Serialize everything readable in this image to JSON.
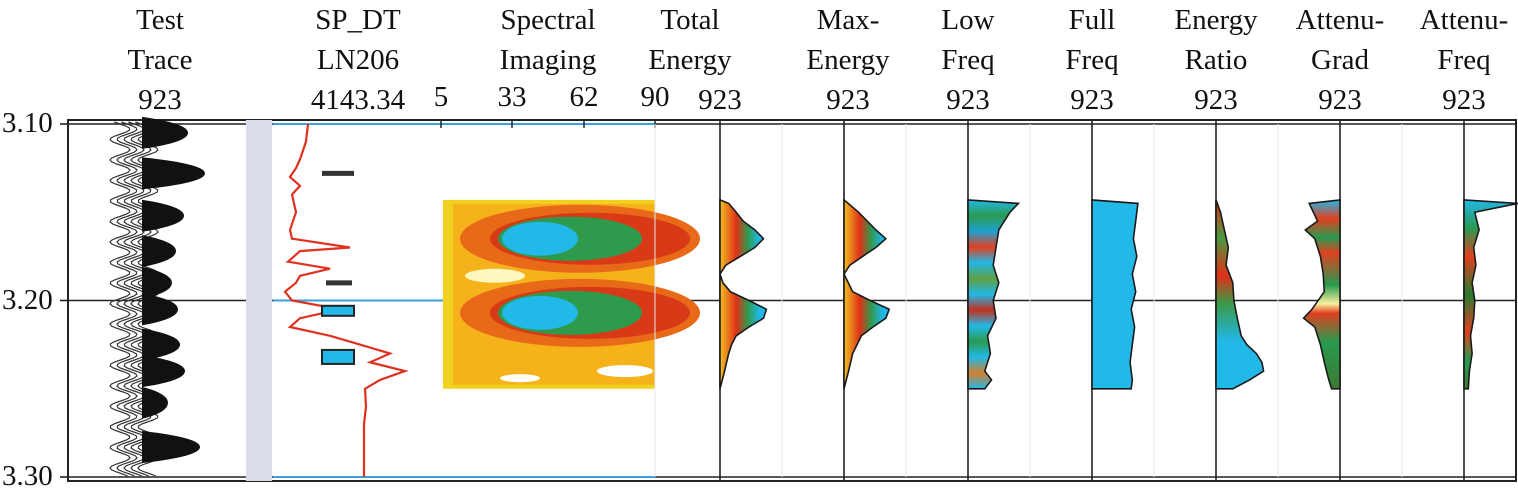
{
  "chart_data": {
    "type": "well-log",
    "depth_axis": {
      "ticks": [
        "3.10",
        "3.20",
        "3.30"
      ],
      "min": 3.1,
      "max": 3.3
    },
    "tracks": [
      {
        "id": "test-trace",
        "lines": [
          "Test",
          "Trace",
          "923"
        ]
      },
      {
        "id": "sp-dt",
        "lines": [
          "SP_DT",
          "LN206",
          "4143.34"
        ]
      },
      {
        "id": "spectral",
        "lines": [
          "Spectral",
          "Imaging",
          ""
        ],
        "freq_ticks": [
          "5",
          "33",
          "62",
          "90"
        ]
      },
      {
        "id": "total-energy",
        "lines": [
          "Total",
          "Energy",
          "923"
        ]
      },
      {
        "id": "max-energy",
        "lines": [
          "Max-",
          "Energy",
          "923"
        ]
      },
      {
        "id": "low-freq",
        "lines": [
          "Low",
          "Freq",
          "923"
        ]
      },
      {
        "id": "full-freq",
        "lines": [
          "Full",
          "Freq",
          "923"
        ]
      },
      {
        "id": "energy-ratio",
        "lines": [
          "Energy",
          "Ratio",
          "923"
        ]
      },
      {
        "id": "attenu-grad",
        "lines": [
          "Attenu-",
          "Grad",
          "923"
        ]
      },
      {
        "id": "attenu-freq",
        "lines": [
          "Attenu-",
          "Freq",
          "923"
        ]
      }
    ],
    "profiles": {
      "total_energy": [
        [
          3.143,
          0.0
        ],
        [
          3.145,
          0.15
        ],
        [
          3.15,
          0.28
        ],
        [
          3.155,
          0.4
        ],
        [
          3.16,
          0.6
        ],
        [
          3.165,
          0.75
        ],
        [
          3.17,
          0.6
        ],
        [
          3.175,
          0.35
        ],
        [
          3.18,
          0.1
        ],
        [
          3.185,
          0.0
        ],
        [
          3.19,
          0.05
        ],
        [
          3.195,
          0.18
        ],
        [
          3.2,
          0.5
        ],
        [
          3.205,
          0.8
        ],
        [
          3.21,
          0.75
        ],
        [
          3.215,
          0.5
        ],
        [
          3.22,
          0.28
        ],
        [
          3.225,
          0.2
        ],
        [
          3.23,
          0.15
        ],
        [
          3.24,
          0.08
        ],
        [
          3.25,
          0.0
        ]
      ],
      "max_energy": [
        [
          3.143,
          0.0
        ],
        [
          3.15,
          0.25
        ],
        [
          3.16,
          0.55
        ],
        [
          3.165,
          0.72
        ],
        [
          3.17,
          0.55
        ],
        [
          3.175,
          0.32
        ],
        [
          3.18,
          0.1
        ],
        [
          3.185,
          0.0
        ],
        [
          3.195,
          0.15
        ],
        [
          3.2,
          0.45
        ],
        [
          3.205,
          0.78
        ],
        [
          3.21,
          0.72
        ],
        [
          3.215,
          0.5
        ],
        [
          3.22,
          0.3
        ],
        [
          3.23,
          0.15
        ],
        [
          3.24,
          0.08
        ],
        [
          3.25,
          0.0
        ]
      ],
      "low_freq": [
        [
          3.143,
          0.0
        ],
        [
          3.145,
          0.9
        ],
        [
          3.15,
          0.75
        ],
        [
          3.16,
          0.55
        ],
        [
          3.17,
          0.5
        ],
        [
          3.18,
          0.45
        ],
        [
          3.19,
          0.55
        ],
        [
          3.2,
          0.45
        ],
        [
          3.21,
          0.5
        ],
        [
          3.22,
          0.35
        ],
        [
          3.23,
          0.4
        ],
        [
          3.24,
          0.3
        ],
        [
          3.245,
          0.42
        ],
        [
          3.25,
          0.3
        ],
        [
          3.25,
          0.0
        ]
      ],
      "full_freq": [
        [
          3.143,
          0.0
        ],
        [
          3.145,
          0.82
        ],
        [
          3.155,
          0.78
        ],
        [
          3.165,
          0.74
        ],
        [
          3.175,
          0.8
        ],
        [
          3.185,
          0.72
        ],
        [
          3.195,
          0.78
        ],
        [
          3.205,
          0.7
        ],
        [
          3.215,
          0.76
        ],
        [
          3.225,
          0.72
        ],
        [
          3.235,
          0.68
        ],
        [
          3.245,
          0.72
        ],
        [
          3.25,
          0.7
        ],
        [
          3.25,
          0.0
        ]
      ],
      "energy_ratio": [
        [
          3.143,
          0.0
        ],
        [
          3.15,
          0.08
        ],
        [
          3.16,
          0.15
        ],
        [
          3.17,
          0.22
        ],
        [
          3.18,
          0.18
        ],
        [
          3.19,
          0.3
        ],
        [
          3.2,
          0.32
        ],
        [
          3.21,
          0.38
        ],
        [
          3.22,
          0.45
        ],
        [
          3.225,
          0.55
        ],
        [
          3.23,
          0.72
        ],
        [
          3.235,
          0.82
        ],
        [
          3.24,
          0.85
        ],
        [
          3.245,
          0.6
        ],
        [
          3.25,
          0.3
        ],
        [
          3.25,
          0.0
        ]
      ],
      "attenu_grad": [
        [
          3.143,
          0.0
        ],
        [
          3.145,
          0.55
        ],
        [
          3.155,
          0.4
        ],
        [
          3.16,
          0.62
        ],
        [
          3.165,
          0.45
        ],
        [
          3.175,
          0.35
        ],
        [
          3.185,
          0.3
        ],
        [
          3.195,
          0.28
        ],
        [
          3.205,
          0.5
        ],
        [
          3.21,
          0.65
        ],
        [
          3.215,
          0.45
        ],
        [
          3.225,
          0.35
        ],
        [
          3.235,
          0.28
        ],
        [
          3.245,
          0.2
        ],
        [
          3.25,
          0.15
        ],
        [
          3.25,
          0.0
        ]
      ],
      "attenu_freq": [
        [
          3.143,
          0.0
        ],
        [
          3.145,
          1.0
        ],
        [
          3.15,
          0.2
        ],
        [
          3.16,
          0.28
        ],
        [
          3.17,
          0.18
        ],
        [
          3.18,
          0.22
        ],
        [
          3.19,
          0.15
        ],
        [
          3.2,
          0.2
        ],
        [
          3.21,
          0.18
        ],
        [
          3.22,
          0.12
        ],
        [
          3.23,
          0.15
        ],
        [
          3.24,
          0.1
        ],
        [
          3.25,
          0.08
        ],
        [
          3.25,
          0.0
        ]
      ]
    }
  }
}
